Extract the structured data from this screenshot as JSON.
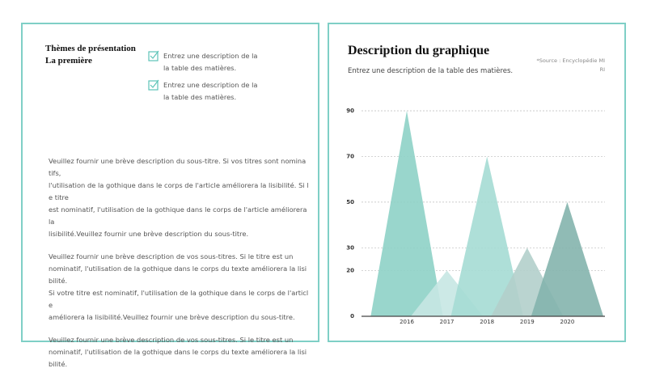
{
  "left": {
    "title_lines": [
      "Thèmes de présentation",
      "La première"
    ],
    "checklist": [
      [
        "Entrez une description de la",
        "la table des matières."
      ],
      [
        "Entrez une description de la",
        "la table des matières."
      ]
    ],
    "paragraphs": [
      [
        "Veuillez fournir une brève description du sous-titre. Si vos titres sont nomina",
        "tifs,",
        "l'utilisation de la gothique dans le corps de l'article améliorera la lisibilité. Si l",
        "e titre",
        "est nominatif, l'utilisation de la gothique dans le corps de l'article améliorera",
        "la",
        "lisibilité.Veuillez fournir une brève description du sous-titre."
      ],
      [
        "Veuillez fournir une brève description de vos sous-titres. Si le titre est un",
        "nominatif, l'utilisation de la gothique dans le corps du texte améliorera la lisi",
        "bilité.",
        "Si votre titre est nominatif, l'utilisation de la gothique dans le corps de l'articl",
        "e",
        "améliorera la lisibilité.Veuillez fournir une brève description du sous-titre."
      ],
      [
        "Veuillez fournir une brève description de vos sous-titres. Si le titre est un",
        "nominatif, l'utilisation de la gothique dans le corps du texte améliorera la lisi",
        "bilité."
      ]
    ]
  },
  "chart_data": {
    "type": "peak",
    "title": "Description du graphique",
    "subtitle": "Entrez une description de la table des matières.",
    "source": "*Source : Encyclopédie MI RI",
    "categories": [
      "2016",
      "2017",
      "2018",
      "2019",
      "2020"
    ],
    "values": [
      90,
      20,
      70,
      30,
      50
    ],
    "colors": [
      "#8ed2c7",
      "#c6e7e3",
      "#a5dcd4",
      "#b2cfcb",
      "#84b4ad"
    ],
    "ylim": [
      0,
      90
    ],
    "yticks": [
      0,
      20,
      30,
      50,
      70,
      90
    ],
    "grid": true
  }
}
